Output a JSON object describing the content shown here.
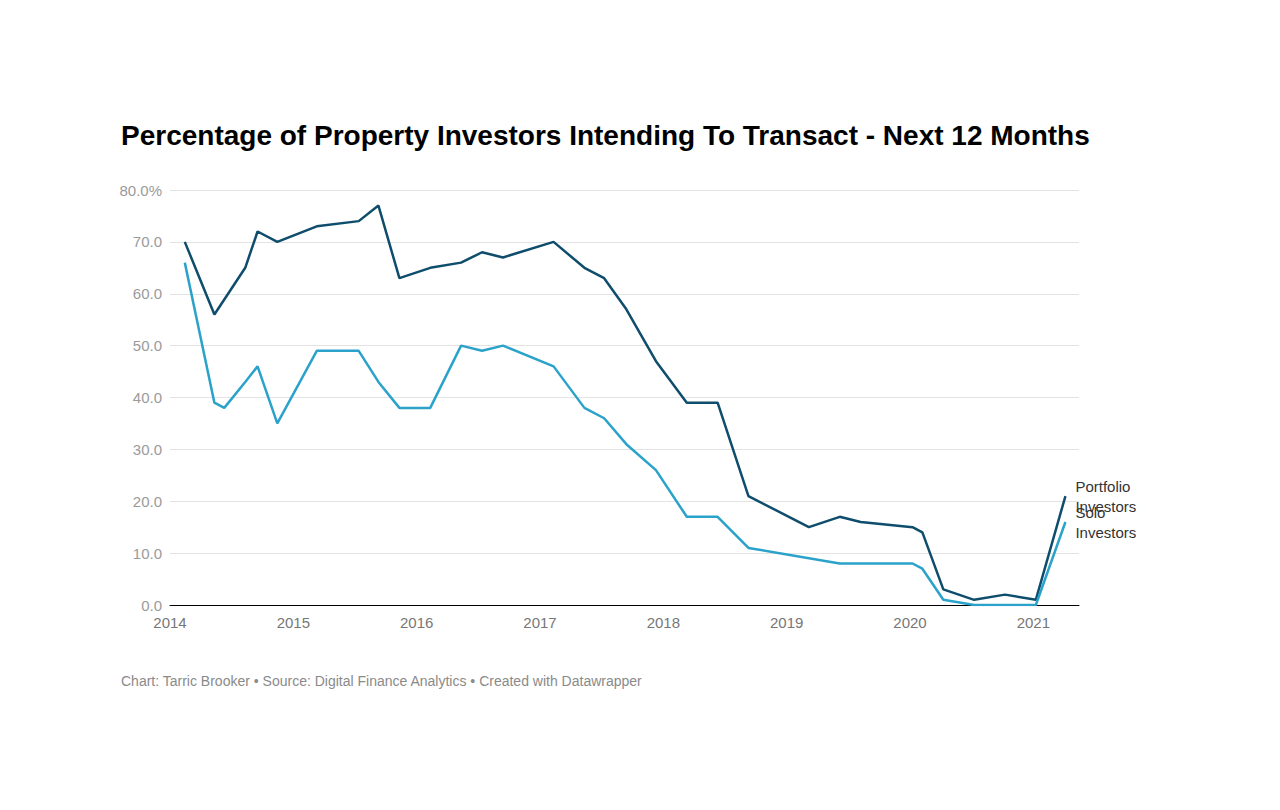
{
  "chart_data": {
    "type": "line",
    "title": "Percentage of Property Investors Intending To Transact - Next 12 Months",
    "caption": "Chart: Tarric Brooker • Source: Digital Finance Analytics • Created with Datawrapper",
    "xlim": [
      2014,
      2021.37
    ],
    "xticks": [
      2014,
      2015,
      2016,
      2017,
      2018,
      2019,
      2020,
      2021
    ],
    "ylim": [
      0,
      80
    ],
    "yticks": [
      {
        "value": 0,
        "label": "0.0"
      },
      {
        "value": 10,
        "label": "10.0"
      },
      {
        "value": 20,
        "label": "20.0"
      },
      {
        "value": 30,
        "label": "30.0"
      },
      {
        "value": 40,
        "label": "40.0"
      },
      {
        "value": 50,
        "label": "50.0"
      },
      {
        "value": 60,
        "label": "60.0"
      },
      {
        "value": 70,
        "label": "70.0"
      },
      {
        "value": 80,
        "label": "80.0%"
      }
    ],
    "grid": true,
    "series": [
      {
        "name": "Portfolio Investors",
        "color": "#0f4d6c",
        "x": [
          2014.12,
          2014.36,
          2014.61,
          2014.71,
          2014.87,
          2015.19,
          2015.53,
          2015.69,
          2015.86,
          2016.11,
          2016.36,
          2016.53,
          2016.7,
          2017.11,
          2017.36,
          2017.52,
          2017.7,
          2017.94,
          2018.19,
          2018.44,
          2018.69,
          2019.18,
          2019.43,
          2019.6,
          2020.02,
          2020.1,
          2020.27,
          2020.52,
          2020.77,
          2021.02,
          2021.26
        ],
        "values": [
          70,
          56,
          65,
          72,
          70,
          73,
          74,
          77,
          63,
          65,
          66,
          68,
          67,
          70,
          65,
          63,
          57,
          47,
          39,
          39,
          21,
          15,
          17,
          16,
          15,
          14,
          3,
          1,
          2,
          1,
          21
        ]
      },
      {
        "name": "Solo Investors",
        "color": "#2ba2ca",
        "x": [
          2014.12,
          2014.36,
          2014.44,
          2014.61,
          2014.71,
          2014.87,
          2015.19,
          2015.53,
          2015.69,
          2015.86,
          2016.11,
          2016.36,
          2016.53,
          2016.7,
          2017.11,
          2017.36,
          2017.52,
          2017.7,
          2017.94,
          2018.19,
          2018.44,
          2018.69,
          2019.43,
          2020.02,
          2020.1,
          2020.27,
          2020.52,
          2020.77,
          2021.02,
          2021.26
        ],
        "values": [
          66,
          39,
          38,
          43,
          46,
          35,
          49,
          49,
          43,
          38,
          38,
          50,
          49,
          50,
          46,
          38,
          36,
          31,
          26,
          17,
          17,
          11,
          8,
          8,
          7,
          1,
          0,
          0,
          0,
          16
        ]
      }
    ]
  }
}
